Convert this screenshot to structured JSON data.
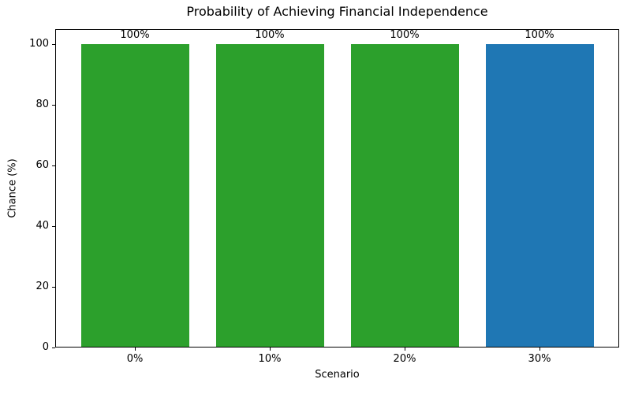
{
  "chart_data": {
    "type": "bar",
    "title": "Probability of Achieving Financial Independence",
    "xlabel": "Scenario",
    "ylabel": "Chance (%)",
    "categories": [
      "0%",
      "10%",
      "20%",
      "30%"
    ],
    "values": [
      100,
      100,
      100,
      100
    ],
    "bar_labels": [
      "100%",
      "100%",
      "100%",
      "100%"
    ],
    "bar_colors": [
      "#2ca02c",
      "#2ca02c",
      "#2ca02c",
      "#1f77b4"
    ],
    "yticks": [
      0,
      20,
      40,
      60,
      80,
      100
    ],
    "ylim": [
      0,
      105
    ],
    "bar_width_fraction": 0.8,
    "grid": false,
    "legend_position": "none",
    "text_color": "#000000",
    "axis_color": "#000000",
    "background_color": "#ffffff"
  }
}
